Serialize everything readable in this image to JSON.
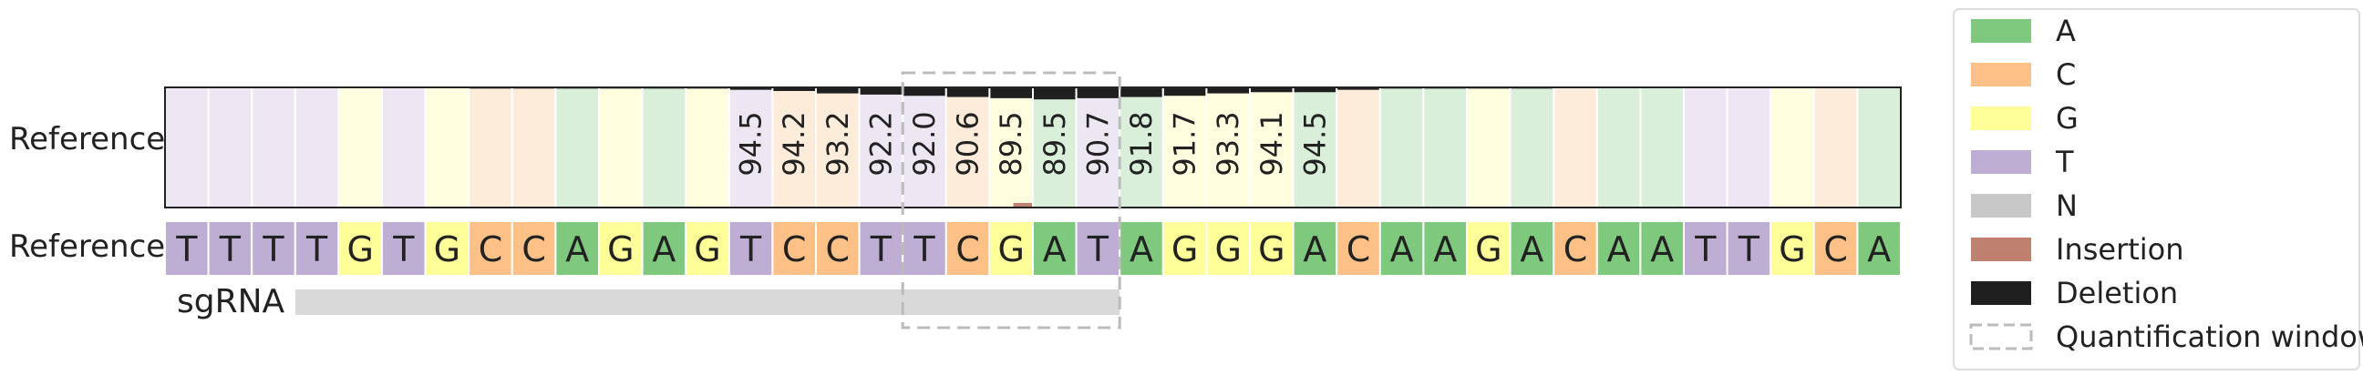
{
  "chart_data": {
    "type": "heatmap",
    "row_labels": {
      "top": "Reference",
      "bottom": "Reference"
    },
    "sgrna_label": "sgRNA",
    "reference_sequence": [
      "T",
      "T",
      "T",
      "T",
      "G",
      "T",
      "G",
      "C",
      "C",
      "A",
      "G",
      "A",
      "G",
      "T",
      "C",
      "C",
      "T",
      "T",
      "C",
      "G",
      "A",
      "T",
      "A",
      "G",
      "G",
      "G",
      "A",
      "C",
      "A",
      "A",
      "G",
      "A",
      "C",
      "A",
      "A",
      "T",
      "T",
      "G",
      "C",
      "A"
    ],
    "percent_reference_labels": [
      {
        "pos": 13,
        "value": "94.5"
      },
      {
        "pos": 14,
        "value": "94.2"
      },
      {
        "pos": 15,
        "value": "93.2"
      },
      {
        "pos": 16,
        "value": "92.2"
      },
      {
        "pos": 17,
        "value": "92.0"
      },
      {
        "pos": 18,
        "value": "90.6"
      },
      {
        "pos": 19,
        "value": "89.5"
      },
      {
        "pos": 20,
        "value": "89.5"
      },
      {
        "pos": 21,
        "value": "90.7"
      },
      {
        "pos": 22,
        "value": "91.8"
      },
      {
        "pos": 23,
        "value": "91.7"
      },
      {
        "pos": 24,
        "value": "93.3"
      },
      {
        "pos": 25,
        "value": "94.1"
      },
      {
        "pos": 26,
        "value": "94.5"
      }
    ],
    "deletion_fraction": [
      0,
      0,
      0,
      0,
      0,
      0,
      0,
      0.01,
      0.01,
      0.01,
      0.01,
      0.01,
      0.01,
      0.02,
      0.03,
      0.05,
      0.06,
      0.07,
      0.08,
      0.09,
      0.1,
      0.09,
      0.08,
      0.07,
      0.05,
      0.04,
      0.04,
      0.02,
      0.01,
      0.01,
      0.01,
      0.01,
      0,
      0,
      0,
      0,
      0,
      0,
      0,
      0
    ],
    "insertion_fraction": [
      0,
      0,
      0,
      0,
      0,
      0,
      0,
      0,
      0,
      0,
      0,
      0,
      0,
      0,
      0,
      0,
      0,
      0,
      0,
      0.01,
      0,
      0,
      0,
      0,
      0,
      0,
      0,
      0,
      0,
      0,
      0,
      0,
      0,
      0,
      0,
      0,
      0,
      0,
      0,
      0
    ],
    "sgrna": {
      "start": 3,
      "end": 22
    },
    "quantification_window": {
      "start": 17,
      "end": 22
    },
    "legend": [
      {
        "label": "A",
        "color": "#7fc97f",
        "style": "fill"
      },
      {
        "label": "C",
        "color": "#fdc086",
        "style": "fill"
      },
      {
        "label": "G",
        "color": "#ffff99",
        "style": "fill"
      },
      {
        "label": "T",
        "color": "#beaed4",
        "style": "fill"
      },
      {
        "label": "N",
        "color": "#c8c8c8",
        "style": "fill"
      },
      {
        "label": "Insertion",
        "color": "#c08070",
        "style": "fill"
      },
      {
        "label": "Deletion",
        "color": "#1f1f1f",
        "style": "fill"
      },
      {
        "label": "Quantification window",
        "color": "#bbbbbb",
        "style": "dashed"
      }
    ],
    "legend_placement": "right"
  },
  "colors": {
    "A": "#7fc97f",
    "C": "#fdc086",
    "G": "#ffff99",
    "T": "#beaed4",
    "sgrna_bar": "#d9d9d9",
    "window": "#bbbbbb",
    "insertion": "#c08070",
    "deletion": "#1f1f1f"
  }
}
